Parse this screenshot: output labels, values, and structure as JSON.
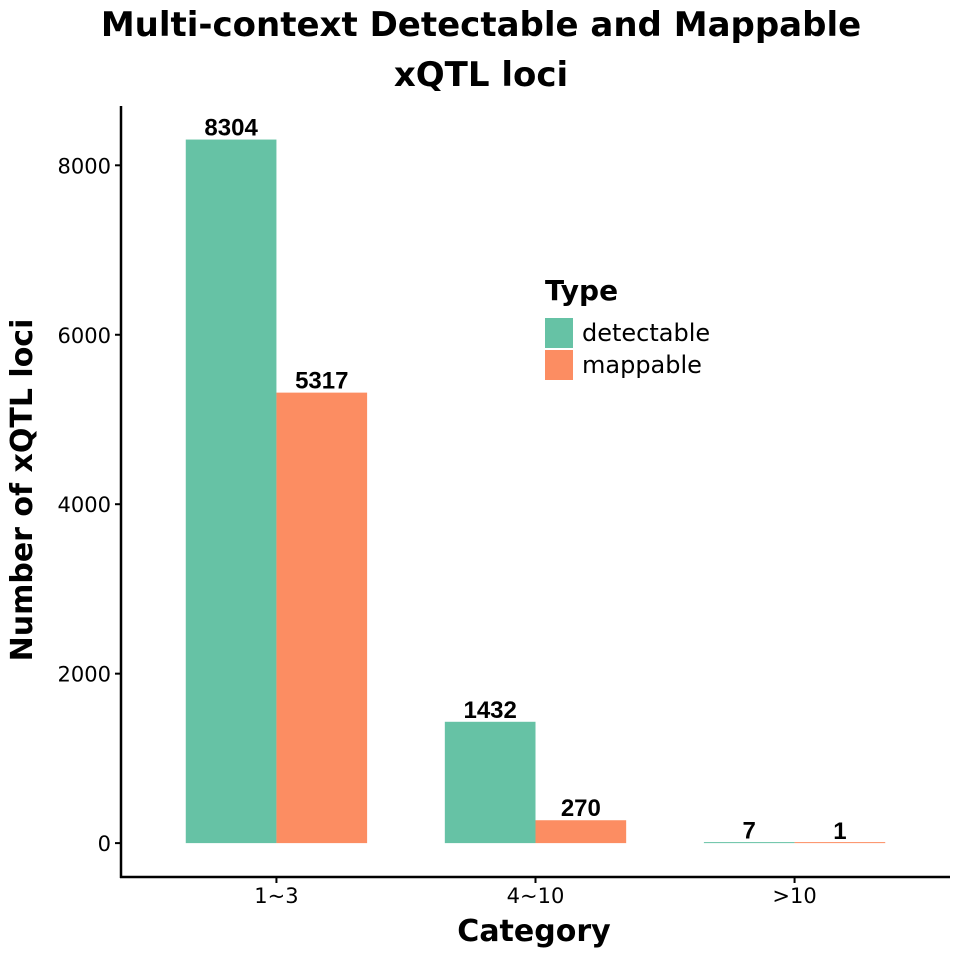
{
  "chart_data": {
    "type": "bar",
    "title": "Multi-context Detectable and Mappable",
    "subtitle": "xQTL loci",
    "xlabel": "Category",
    "ylabel": "Number of xQTL loci",
    "categories": [
      "1~3",
      "4~10",
      ">10"
    ],
    "series": [
      {
        "name": "detectable",
        "values": [
          8304,
          1432,
          7
        ],
        "color": "#66c2a5"
      },
      {
        "name": "mappable",
        "values": [
          5317,
          270,
          1
        ],
        "color": "#fc8d62"
      }
    ],
    "data_labels": [
      [
        "8304",
        "1432",
        "7"
      ],
      [
        "5317",
        "270",
        "1"
      ]
    ],
    "yticks": [
      0,
      2000,
      4000,
      6000,
      8000
    ],
    "ylim": [
      -400,
      8700
    ],
    "grid": false,
    "legend": {
      "title": "Type",
      "placement": "right-inside"
    }
  }
}
